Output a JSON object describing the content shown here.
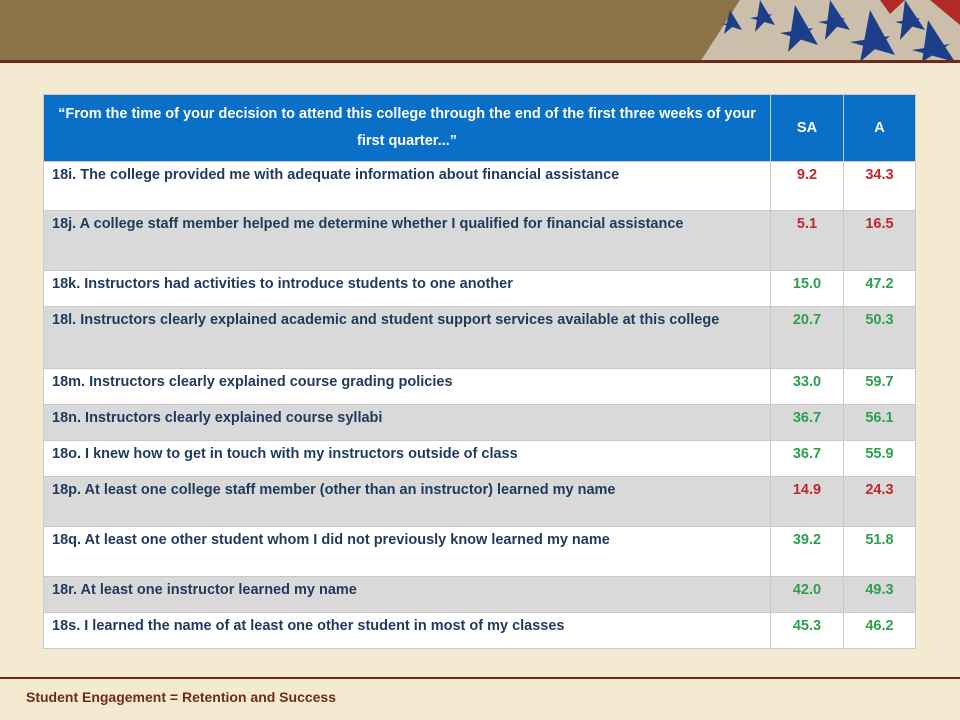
{
  "header": {
    "question": "“From the time of your decision to attend this college through the end of the first three weeks of your first quarter...”",
    "col_sa": "SA",
    "col_a": "A"
  },
  "colors": {
    "red": "#c0272d",
    "green": "#2f9e4f",
    "header_bg": "#0a6fc6"
  },
  "rows": [
    {
      "label": "18i. The college provided me with adequate information about financial assistance",
      "sa": "9.2",
      "a": "34.3",
      "color": "red"
    },
    {
      "label": "18j. A college staff member helped me determine whether I qualified for financial assistance",
      "sa": "5.1",
      "a": "16.5",
      "color": "red"
    },
    {
      "label": "18k. Instructors had activities to introduce students to one another",
      "sa": "15.0",
      "a": "47.2",
      "color": "green"
    },
    {
      "label": "18l. Instructors clearly explained academic and student support services available at this college",
      "sa": "20.7",
      "a": "50.3",
      "color": "green"
    },
    {
      "label": "18m. Instructors clearly explained course grading policies",
      "sa": "33.0",
      "a": "59.7",
      "color": "green"
    },
    {
      "label": "18n. Instructors clearly explained course syllabi",
      "sa": "36.7",
      "a": "56.1",
      "color": "green"
    },
    {
      "label": "18o. I knew how to get in touch with my instructors outside of class",
      "sa": "36.7",
      "a": "55.9",
      "color": "green"
    },
    {
      "label": "18p. At least one college staff member (other than an instructor) learned my name",
      "sa": "14.9",
      "a": "24.3",
      "color": "red"
    },
    {
      "label": "18q. At least one other student whom I did not previously know learned my name",
      "sa": "39.2",
      "a": "51.8",
      "color": "green"
    },
    {
      "label": "18r. At least one instructor learned my name",
      "sa": "42.0",
      "a": "49.3",
      "color": "green"
    },
    {
      "label": "18s. I learned the name of at least one other student in most of my classes",
      "sa": "45.3",
      "a": "46.2",
      "color": "green"
    }
  ],
  "footer": "Student Engagement = Retention and Success"
}
